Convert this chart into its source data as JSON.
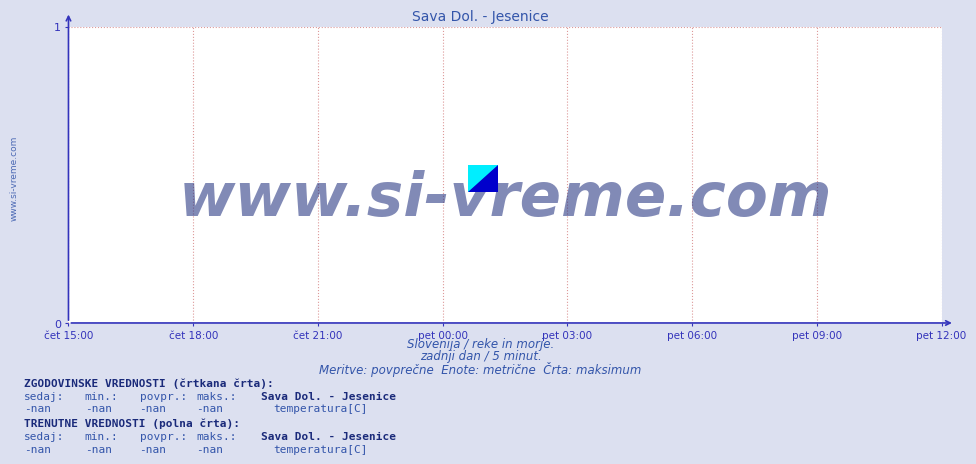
{
  "title": "Sava Dol. - Jesenice",
  "title_color": "#3355aa",
  "title_fontsize": 10,
  "bg_color": "#dce0f0",
  "plot_bg_color": "#ffffff",
  "axis_color": "#3333bb",
  "grid_color": "#dd9999",
  "grid_style": ":",
  "x_labels": [
    "čet 15:00",
    "čet 18:00",
    "čet 21:00",
    "pet 00:00",
    "pet 03:00",
    "pet 06:00",
    "pet 09:00",
    "pet 12:00"
  ],
  "x_positions": [
    0.0,
    0.142857,
    0.285714,
    0.428571,
    0.571429,
    0.714286,
    0.857143,
    1.0
  ],
  "y_min": 0,
  "y_max": 1,
  "y_ticks": [
    0,
    1
  ],
  "subtitle_line1": "Slovenija / reke in morje.",
  "subtitle_line2": "zadnji dan / 5 minut.",
  "subtitle_line3": "Meritve: povprečne  Enote: metrične  Črta: maksimum",
  "subtitle_color": "#3355aa",
  "subtitle_fontsize": 8.5,
  "watermark_text": "www.si-vreme.com",
  "watermark_color": "#1a2a7a",
  "watermark_alpha": 0.55,
  "watermark_fontsize": 44,
  "side_text": "www.si-vreme.com",
  "side_text_color": "#3355aa",
  "side_text_fontsize": 6.5,
  "legend_box_color": "#cc0000",
  "table_header1": "ZGODOVINSKE VREDNOSTI (črtkana črta):",
  "table_header2": "TRENUTNE VREDNOSTI (polna črta):",
  "table_col_headers": [
    "sedaj:",
    "min.:",
    "povpr.:",
    "maks.:"
  ],
  "table_values": [
    "-nan",
    "-nan",
    "-nan",
    "-nan"
  ],
  "table_station": "Sava Dol. - Jesenice",
  "table_param": "temperatura[C]",
  "table_text_color": "#3355aa",
  "table_bold_color": "#1a2a7a",
  "table_fontsize": 8,
  "logo_yellow": "#ffff00",
  "logo_cyan": "#00eeff",
  "logo_blue": "#0000cc"
}
